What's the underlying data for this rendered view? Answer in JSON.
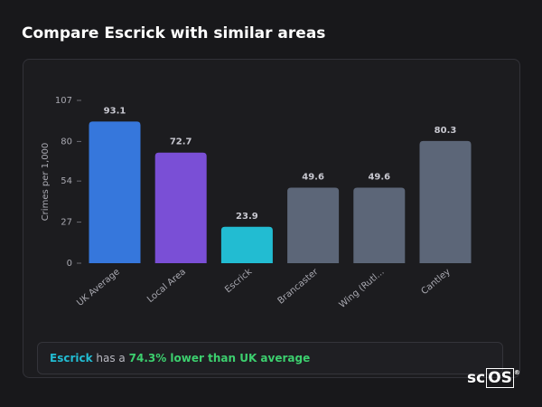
{
  "header": {
    "title": "Compare Escrick with similar areas"
  },
  "chart_data": {
    "type": "bar",
    "ylabel": "Crimes per 1,000",
    "categories": [
      "UK Average",
      "Local Area",
      "Escrick",
      "Brancaster",
      "Wing (Rutl...",
      "Cantley"
    ],
    "values": [
      93.1,
      72.7,
      23.9,
      49.6,
      49.6,
      80.3
    ],
    "colors": [
      "#3677dc",
      "#7a4fd6",
      "#22bcd2",
      "#5c6678",
      "#5c6678",
      "#5c6678"
    ],
    "ylim": [
      0,
      107
    ],
    "yticks": [
      0,
      27,
      54,
      80,
      107
    ],
    "grid": false
  },
  "summary": {
    "area": "Escrick",
    "text": "has a",
    "highlight": "74.3% lower than UK average"
  },
  "logo": {
    "main": "sc",
    "boxed": "OS",
    "mark": "®"
  }
}
